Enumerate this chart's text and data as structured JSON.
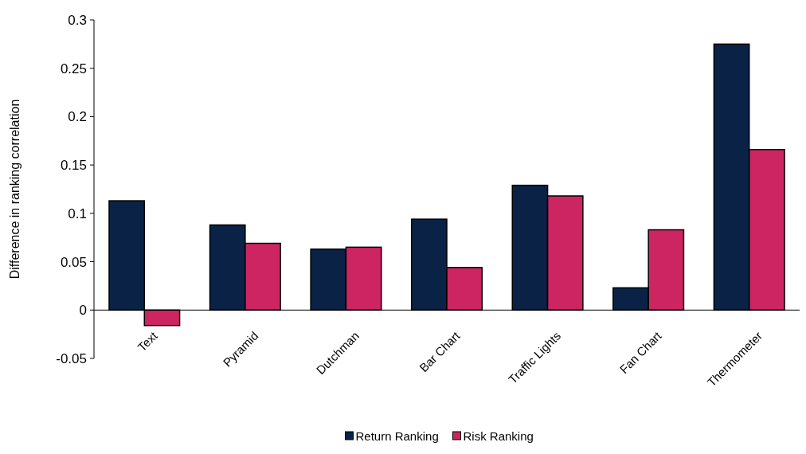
{
  "chart_data": {
    "type": "bar",
    "ylabel": "Difference in ranking correlation",
    "categories": [
      "Text",
      "Pyramid",
      "Dutchman",
      "Bar Chart",
      "Traffic Lights",
      "Fan Chart",
      "Thermometer"
    ],
    "series": [
      {
        "name": "Return Ranking",
        "color": "#0a2246",
        "values": [
          0.113,
          0.088,
          0.063,
          0.094,
          0.129,
          0.023,
          0.275
        ]
      },
      {
        "name": "Risk Ranking",
        "color": "#cc2562",
        "values": [
          -0.016,
          0.069,
          0.065,
          0.044,
          0.118,
          0.083,
          0.166
        ]
      }
    ],
    "ylim": [
      -0.05,
      0.3
    ],
    "yticks": [
      -0.05,
      0,
      0.05,
      0.1,
      0.15,
      0.2,
      0.25,
      0.3
    ],
    "grid": false,
    "legend": "bottom"
  }
}
